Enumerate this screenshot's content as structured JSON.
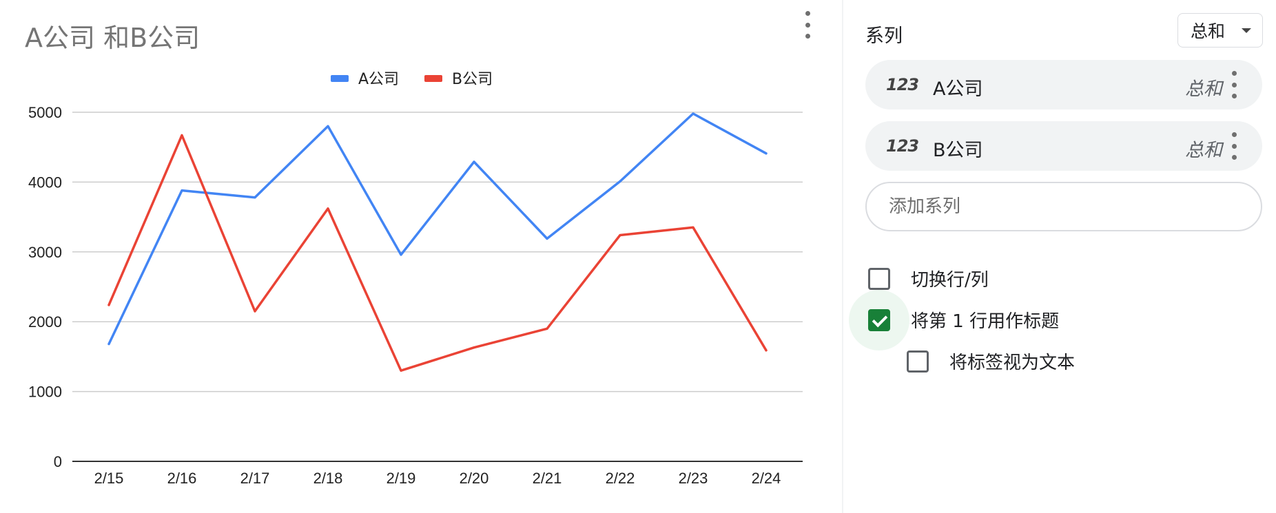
{
  "chart": {
    "title": "A公司 和B公司",
    "menu_icon": "more-vert-icon"
  },
  "chart_data": {
    "type": "line",
    "title": "A公司 和B公司",
    "categories": [
      "2/15",
      "2/16",
      "2/17",
      "2/18",
      "2/19",
      "2/20",
      "2/21",
      "2/22",
      "2/23",
      "2/24"
    ],
    "series": [
      {
        "name": "A公司",
        "color": "#4285f4",
        "values": [
          1680,
          3880,
          3780,
          4800,
          2960,
          4290,
          3190,
          4010,
          4980,
          4410
        ]
      },
      {
        "name": "B公司",
        "color": "#ea4335",
        "values": [
          2240,
          4670,
          2150,
          3620,
          1300,
          1630,
          1900,
          3240,
          3350,
          1590
        ]
      }
    ],
    "xlabel": "",
    "ylabel": "",
    "ylim": [
      0,
      5000
    ],
    "yticks": [
      0,
      1000,
      2000,
      3000,
      4000,
      5000
    ],
    "grid": true,
    "legend": "top"
  },
  "panel": {
    "heading": "系列",
    "aggregate_dropdown": {
      "selected": "总和"
    },
    "series": [
      {
        "icon": "123",
        "name": "A公司",
        "aggregate": "总和"
      },
      {
        "icon": "123",
        "name": "B公司",
        "aggregate": "总和"
      }
    ],
    "add_series_placeholder": "添加系列",
    "checkboxes": [
      {
        "label": "切换行/列",
        "checked": false
      },
      {
        "label": "将第 1 行用作标题",
        "checked": true
      },
      {
        "label": "将标签视为文本",
        "checked": false
      }
    ]
  }
}
